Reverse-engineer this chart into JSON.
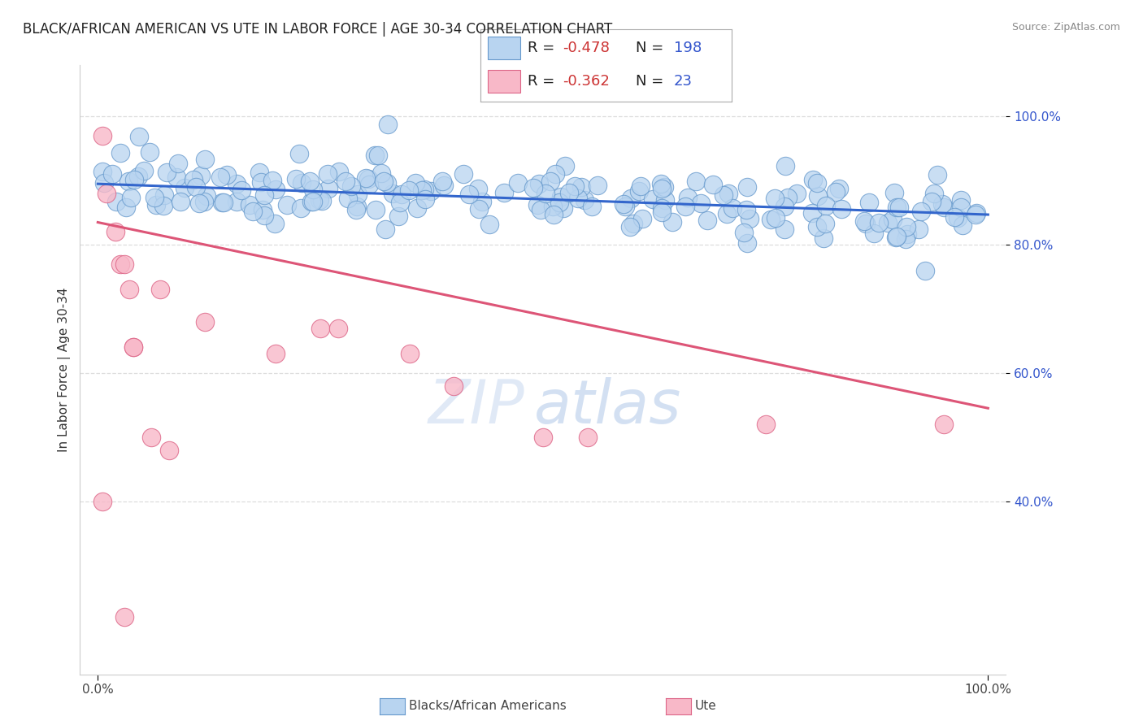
{
  "title": "BLACK/AFRICAN AMERICAN VS UTE IN LABOR FORCE | AGE 30-34 CORRELATION CHART",
  "source": "Source: ZipAtlas.com",
  "ylabel": "In Labor Force | Age 30-34",
  "watermark_zip": "ZIP",
  "watermark_atlas": "atlas",
  "blue_R": -0.478,
  "blue_N": 198,
  "pink_R": -0.362,
  "pink_N": 23,
  "blue_face_color": "#b8d4f0",
  "blue_edge_color": "#6699cc",
  "blue_line_color": "#3366cc",
  "pink_face_color": "#f8b8c8",
  "pink_edge_color": "#dd6688",
  "pink_line_color": "#dd5577",
  "legend_R_color": "#cc3333",
  "legend_N_color": "#3355cc",
  "grid_color": "#dddddd",
  "background_color": "#ffffff",
  "title_fontsize": 12,
  "source_fontsize": 9,
  "axis_label_fontsize": 11,
  "tick_fontsize": 11,
  "watermark_zip_fontsize": 54,
  "watermark_atlas_fontsize": 54,
  "watermark_zip_color": "#c8d8f0",
  "watermark_atlas_color": "#b0c8e8",
  "legend_fontsize": 13,
  "xlim": [
    -0.02,
    1.02
  ],
  "ylim": [
    0.13,
    1.08
  ],
  "ytick_vals": [
    0.4,
    0.6,
    0.8,
    1.0
  ],
  "ytick_labels": [
    "40.0%",
    "60.0%",
    "80.0%",
    "100.0%"
  ],
  "xtick_vals": [
    0.0,
    1.0
  ],
  "xtick_labels": [
    "0.0%",
    "100.0%"
  ],
  "blue_line_x0": 0.0,
  "blue_line_y0": 0.895,
  "blue_line_x1": 1.0,
  "blue_line_y1": 0.847,
  "pink_line_x0": 0.0,
  "pink_line_y0": 0.835,
  "pink_line_x1": 1.0,
  "pink_line_y1": 0.545,
  "bottom_legend_blue_label": "Blacks/African Americans",
  "bottom_legend_pink_label": "Ute"
}
